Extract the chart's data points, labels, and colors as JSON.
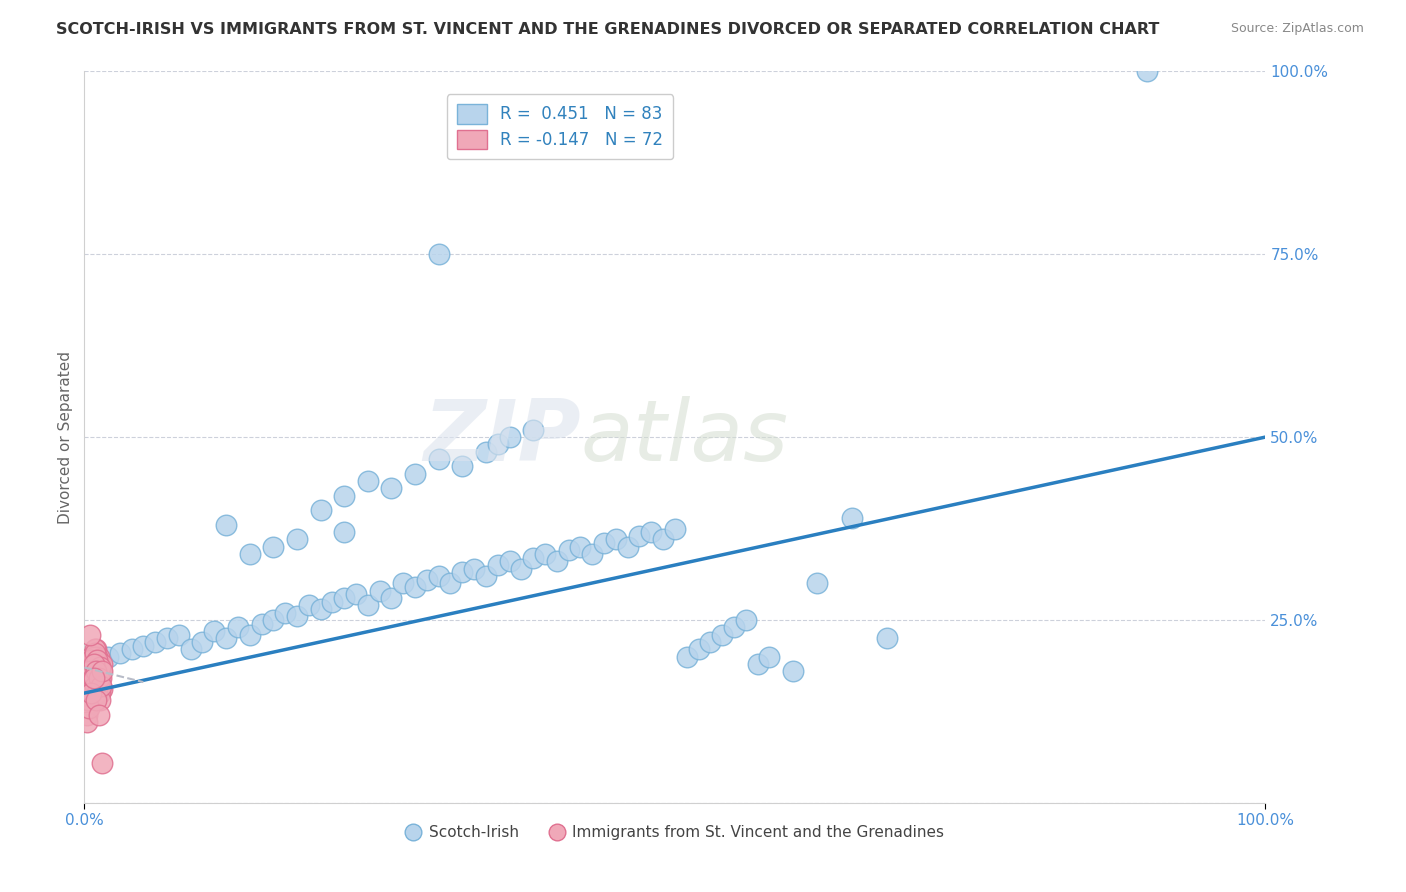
{
  "title": "SCOTCH-IRISH VS IMMIGRANTS FROM ST. VINCENT AND THE GRENADINES DIVORCED OR SEPARATED CORRELATION CHART",
  "source": "Source: ZipAtlas.com",
  "ylabel": "Divorced or Separated",
  "legend_label1": "Scotch-Irish",
  "legend_label2": "Immigrants from St. Vincent and the Grenadines",
  "blue_color": "#7ab3d9",
  "blue_face": "#b8d4ec",
  "pink_face": "#f0a8b8",
  "pink_edge": "#e07090",
  "line_color": "#2a7fc0",
  "dashed_line_color": "#b8bcc8",
  "blue_scatter": [
    [
      2.0,
      20.0
    ],
    [
      3.0,
      20.5
    ],
    [
      4.0,
      21.0
    ],
    [
      5.0,
      21.5
    ],
    [
      6.0,
      22.0
    ],
    [
      7.0,
      22.5
    ],
    [
      8.0,
      23.0
    ],
    [
      9.0,
      21.0
    ],
    [
      10.0,
      22.0
    ],
    [
      11.0,
      23.5
    ],
    [
      12.0,
      22.5
    ],
    [
      13.0,
      24.0
    ],
    [
      14.0,
      23.0
    ],
    [
      15.0,
      24.5
    ],
    [
      16.0,
      25.0
    ],
    [
      17.0,
      26.0
    ],
    [
      18.0,
      25.5
    ],
    [
      19.0,
      27.0
    ],
    [
      20.0,
      26.5
    ],
    [
      21.0,
      27.5
    ],
    [
      22.0,
      28.0
    ],
    [
      23.0,
      28.5
    ],
    [
      24.0,
      27.0
    ],
    [
      25.0,
      29.0
    ],
    [
      26.0,
      28.0
    ],
    [
      27.0,
      30.0
    ],
    [
      28.0,
      29.5
    ],
    [
      29.0,
      30.5
    ],
    [
      30.0,
      31.0
    ],
    [
      31.0,
      30.0
    ],
    [
      32.0,
      31.5
    ],
    [
      33.0,
      32.0
    ],
    [
      34.0,
      31.0
    ],
    [
      35.0,
      32.5
    ],
    [
      36.0,
      33.0
    ],
    [
      37.0,
      32.0
    ],
    [
      38.0,
      33.5
    ],
    [
      39.0,
      34.0
    ],
    [
      40.0,
      33.0
    ],
    [
      41.0,
      34.5
    ],
    [
      42.0,
      35.0
    ],
    [
      43.0,
      34.0
    ],
    [
      44.0,
      35.5
    ],
    [
      45.0,
      36.0
    ],
    [
      46.0,
      35.0
    ],
    [
      47.0,
      36.5
    ],
    [
      48.0,
      37.0
    ],
    [
      49.0,
      36.0
    ],
    [
      50.0,
      37.5
    ],
    [
      51.0,
      20.0
    ],
    [
      52.0,
      21.0
    ],
    [
      53.0,
      22.0
    ],
    [
      54.0,
      23.0
    ],
    [
      55.0,
      24.0
    ],
    [
      56.0,
      25.0
    ],
    [
      57.0,
      19.0
    ],
    [
      58.0,
      20.0
    ],
    [
      60.0,
      18.0
    ],
    [
      62.0,
      30.0
    ],
    [
      65.0,
      39.0
    ],
    [
      68.0,
      22.5
    ],
    [
      20.0,
      40.0
    ],
    [
      22.0,
      42.0
    ],
    [
      24.0,
      44.0
    ],
    [
      26.0,
      43.0
    ],
    [
      28.0,
      45.0
    ],
    [
      30.0,
      47.0
    ],
    [
      32.0,
      46.0
    ],
    [
      34.0,
      48.0
    ],
    [
      35.0,
      49.0
    ],
    [
      36.0,
      50.0
    ],
    [
      38.0,
      51.0
    ],
    [
      22.0,
      37.0
    ],
    [
      18.0,
      36.0
    ],
    [
      16.0,
      35.0
    ],
    [
      14.0,
      34.0
    ],
    [
      12.0,
      38.0
    ],
    [
      30.0,
      75.0
    ],
    [
      90.0,
      100.0
    ]
  ],
  "pink_scatter": [
    [
      0.2,
      15.0
    ],
    [
      0.3,
      17.0
    ],
    [
      0.4,
      19.0
    ],
    [
      0.5,
      16.0
    ],
    [
      0.6,
      18.0
    ],
    [
      0.7,
      20.0
    ],
    [
      0.8,
      17.0
    ],
    [
      0.9,
      19.0
    ],
    [
      1.0,
      21.0
    ],
    [
      1.1,
      18.0
    ],
    [
      1.2,
      20.0
    ],
    [
      1.3,
      16.0
    ],
    [
      1.4,
      18.0
    ],
    [
      1.5,
      15.5
    ],
    [
      0.3,
      14.0
    ],
    [
      0.4,
      16.0
    ],
    [
      0.5,
      18.0
    ],
    [
      0.6,
      20.0
    ],
    [
      0.7,
      17.0
    ],
    [
      0.8,
      19.0
    ],
    [
      0.9,
      21.0
    ],
    [
      1.0,
      18.0
    ],
    [
      1.1,
      20.0
    ],
    [
      1.2,
      17.0
    ],
    [
      1.3,
      19.0
    ],
    [
      0.2,
      13.0
    ],
    [
      0.3,
      15.0
    ],
    [
      0.4,
      17.0
    ],
    [
      0.5,
      19.0
    ],
    [
      0.6,
      16.0
    ],
    [
      0.7,
      18.0
    ],
    [
      0.8,
      20.0
    ],
    [
      0.9,
      17.0
    ],
    [
      1.0,
      19.0
    ],
    [
      1.1,
      16.0
    ],
    [
      1.2,
      18.0
    ],
    [
      1.3,
      15.0
    ],
    [
      1.4,
      17.0
    ],
    [
      1.5,
      19.0
    ],
    [
      0.3,
      13.5
    ],
    [
      0.4,
      15.5
    ],
    [
      0.5,
      17.5
    ],
    [
      0.6,
      19.5
    ],
    [
      0.7,
      16.5
    ],
    [
      0.8,
      18.5
    ],
    [
      0.9,
      20.5
    ],
    [
      1.0,
      17.5
    ],
    [
      1.1,
      19.5
    ],
    [
      1.2,
      16.5
    ],
    [
      1.3,
      18.5
    ],
    [
      0.2,
      12.0
    ],
    [
      0.3,
      14.0
    ],
    [
      0.4,
      16.0
    ],
    [
      0.5,
      18.0
    ],
    [
      0.6,
      15.0
    ],
    [
      0.7,
      17.0
    ],
    [
      0.8,
      19.0
    ],
    [
      0.9,
      16.0
    ],
    [
      1.0,
      18.0
    ],
    [
      1.1,
      15.0
    ],
    [
      1.2,
      17.0
    ],
    [
      1.3,
      14.0
    ],
    [
      1.4,
      16.0
    ],
    [
      1.5,
      18.0
    ],
    [
      0.2,
      11.0
    ],
    [
      0.4,
      13.0
    ],
    [
      0.6,
      15.0
    ],
    [
      0.8,
      17.0
    ],
    [
      1.0,
      14.0
    ],
    [
      1.2,
      12.0
    ],
    [
      1.5,
      5.5
    ],
    [
      0.5,
      23.0
    ]
  ],
  "blue_line_x": [
    0,
    100
  ],
  "blue_line_y": [
    15.0,
    50.0
  ],
  "pink_line_x": [
    0,
    5
  ],
  "pink_line_y": [
    18.5,
    16.5
  ],
  "xmin": 0,
  "xmax": 100,
  "ymin": 0,
  "ymax": 100,
  "background_color": "#ffffff",
  "grid_color": "#c8ccd8",
  "title_color": "#333333",
  "axis_label_color": "#666666",
  "r_value_color": "#3182bd",
  "tick_label_color": "#4a90d9"
}
